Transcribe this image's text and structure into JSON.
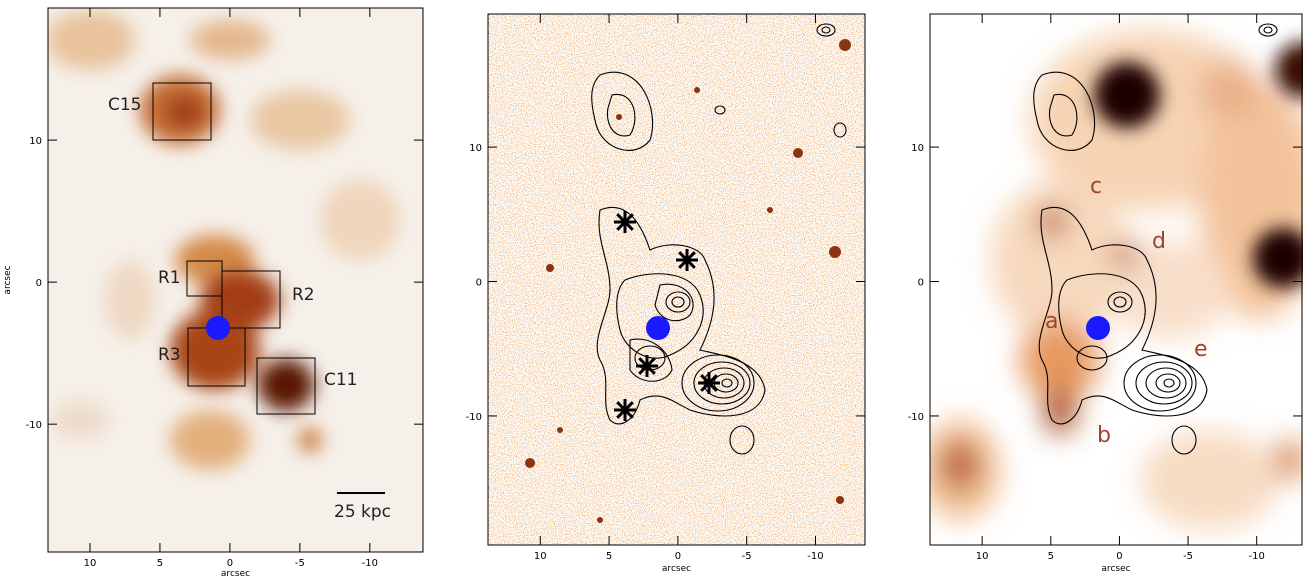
{
  "panels": [
    {
      "xlim": [
        13,
        -13.8
      ],
      "ylim": [
        -19,
        19.3
      ],
      "xticks": [
        10,
        5,
        0,
        -5,
        -10
      ],
      "yticks": [
        10,
        0,
        -10
      ],
      "xlabel": "arcsec",
      "ylabel": "arcsec",
      "annotations": [
        "C15",
        "R1",
        "R2",
        "R3",
        "C11",
        "25 kpc"
      ]
    },
    {
      "xlim": [
        13.8,
        -13.6
      ],
      "ylim": [
        -19.6,
        19.9
      ],
      "xticks": [
        10,
        5,
        0,
        -5,
        -10
      ],
      "yticks": [
        10,
        0,
        -10
      ],
      "xlabel": "arcsec",
      "annotations": []
    },
    {
      "xlim": [
        13.8,
        -13.3
      ],
      "ylim": [
        -19.6,
        19.9
      ],
      "xticks": [
        10,
        5,
        0,
        -5,
        -10
      ],
      "yticks": [
        10,
        0,
        -10
      ],
      "xlabel": "arcsec",
      "annotations": [
        "a",
        "b",
        "c",
        "d",
        "e"
      ]
    }
  ]
}
